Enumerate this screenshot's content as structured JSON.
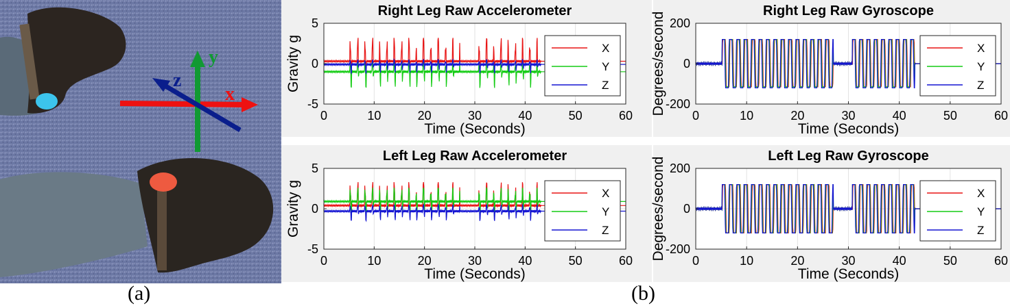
{
  "photo": {
    "axes": {
      "x": "x",
      "y": "y",
      "z": "z"
    },
    "colors": {
      "x": "#ee1111",
      "y": "#119933",
      "z": "#0a1e8c"
    }
  },
  "captions": {
    "a": "(a)",
    "b": "(b)"
  },
  "colors": {
    "X": "#e81414",
    "Y": "#14cc14",
    "Z": "#1414d2",
    "panel_bg": "#f0f0f0"
  },
  "chart_data": [
    {
      "id": "right-acc",
      "type": "line",
      "title": "Right Leg Raw Accelerometer",
      "xlabel": "Time (Seconds)",
      "ylabel": "Gravity g",
      "xlim": [
        0,
        60
      ],
      "ylim": [
        -5,
        5
      ],
      "xticks": [
        0,
        10,
        20,
        30,
        40,
        50,
        60
      ],
      "yticks": [
        -5,
        0,
        5
      ],
      "grid": true,
      "legend": "right",
      "series": [
        {
          "name": "X",
          "baseline": 0.3,
          "peak": 3.2,
          "trough": -0.2
        },
        {
          "name": "Y",
          "baseline": -1.0,
          "peak": 0.4,
          "trough": -3.0
        },
        {
          "name": "Z",
          "baseline": -0.1,
          "peak": 0.5,
          "trough": -1.2
        }
      ]
    },
    {
      "id": "right-gyro",
      "type": "line",
      "title": "Right Leg Raw Gyroscope",
      "xlabel": "Time (Seconds)",
      "ylabel": "Degrees/second",
      "xlim": [
        0,
        60
      ],
      "ylim": [
        -200,
        200
      ],
      "xticks": [
        0,
        10,
        20,
        30,
        40,
        50,
        60
      ],
      "yticks": [
        -200,
        0,
        200
      ],
      "grid": true,
      "legend": "right",
      "series": [
        {
          "name": "X",
          "baseline": 0,
          "peak": 120,
          "trough": -115
        },
        {
          "name": "Y",
          "baseline": 0,
          "peak": 120,
          "trough": -115
        },
        {
          "name": "Z",
          "baseline": 0,
          "peak": 120,
          "trough": -120
        }
      ]
    },
    {
      "id": "left-acc",
      "type": "line",
      "title": "Left Leg Raw Accelerometer",
      "xlabel": "Time (Seconds)",
      "ylabel": "Gravity g",
      "xlim": [
        0,
        60
      ],
      "ylim": [
        -5,
        5
      ],
      "xticks": [
        0,
        10,
        20,
        30,
        40,
        50,
        60
      ],
      "yticks": [
        -5,
        0,
        5
      ],
      "grid": true,
      "legend": "right",
      "series": [
        {
          "name": "X",
          "baseline": 0.4,
          "peak": 3.3,
          "trough": -0.3
        },
        {
          "name": "Y",
          "baseline": 0.9,
          "peak": 2.6,
          "trough": -1.2
        },
        {
          "name": "Z",
          "baseline": -0.3,
          "peak": 0.5,
          "trough": -1.5
        }
      ]
    },
    {
      "id": "left-gyro",
      "type": "line",
      "title": "Left Leg Raw Gyroscope",
      "xlabel": "Time (Seconds)",
      "ylabel": "Degrees/second",
      "xlim": [
        0,
        60
      ],
      "ylim": [
        -200,
        200
      ],
      "xticks": [
        0,
        10,
        20,
        30,
        40,
        50,
        60
      ],
      "yticks": [
        -200,
        0,
        200
      ],
      "grid": true,
      "legend": "right",
      "series": [
        {
          "name": "X",
          "baseline": 0,
          "peak": 120,
          "trough": -120
        },
        {
          "name": "Y",
          "baseline": 0,
          "peak": 120,
          "trough": -120
        },
        {
          "name": "Z",
          "baseline": 0,
          "peak": 120,
          "trough": -120
        }
      ]
    }
  ]
}
